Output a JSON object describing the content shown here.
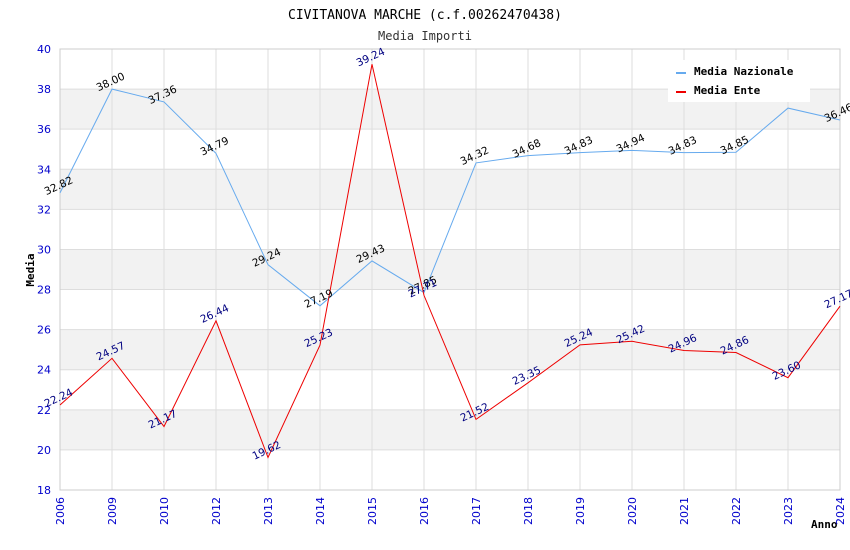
{
  "chart_data": {
    "type": "line",
    "title": "CIVITANOVA MARCHE (c.f.00262470438)",
    "subtitle": "Media Importi",
    "xlabel": "Anno",
    "ylabel": "Media",
    "categories": [
      "2006",
      "2009",
      "2010",
      "2012",
      "2013",
      "2014",
      "2015",
      "2016",
      "2017",
      "2018",
      "2019",
      "2020",
      "2021",
      "2022",
      "2023",
      "2024"
    ],
    "ylim": [
      18,
      40
    ],
    "yticks": [
      18,
      20,
      22,
      24,
      26,
      28,
      30,
      32,
      34,
      36,
      38,
      40
    ],
    "legend_position": "top-right",
    "series": [
      {
        "name": "Media Nazionale",
        "color": "#66aaee",
        "values": [
          32.82,
          38.0,
          37.36,
          34.79,
          29.24,
          27.19,
          29.43,
          27.85,
          34.32,
          34.68,
          34.83,
          34.94,
          34.83,
          34.85,
          37.05,
          36.46
        ],
        "labels": [
          "32.82",
          "38.00",
          "37.36",
          "34.79",
          "29.24",
          "27.19",
          "29.43",
          "27.85",
          "34.32",
          "34.68",
          "34.83",
          "34.94",
          "34.83",
          "34.85",
          "",
          "36.46"
        ]
      },
      {
        "name": "Media Ente",
        "color": "#ee0000",
        "values": [
          22.24,
          24.57,
          21.17,
          26.44,
          19.62,
          25.23,
          39.24,
          27.71,
          21.52,
          23.35,
          25.24,
          25.42,
          24.96,
          24.86,
          23.6,
          27.17
        ],
        "labels": [
          "22.24",
          "24.57",
          "21.17",
          "26.44",
          "19.62",
          "25.23",
          "39.24",
          "27.71",
          "21.52",
          "23.35",
          "25.24",
          "25.42",
          "24.96",
          "24.86",
          "23.60",
          "27.17"
        ]
      }
    ]
  }
}
